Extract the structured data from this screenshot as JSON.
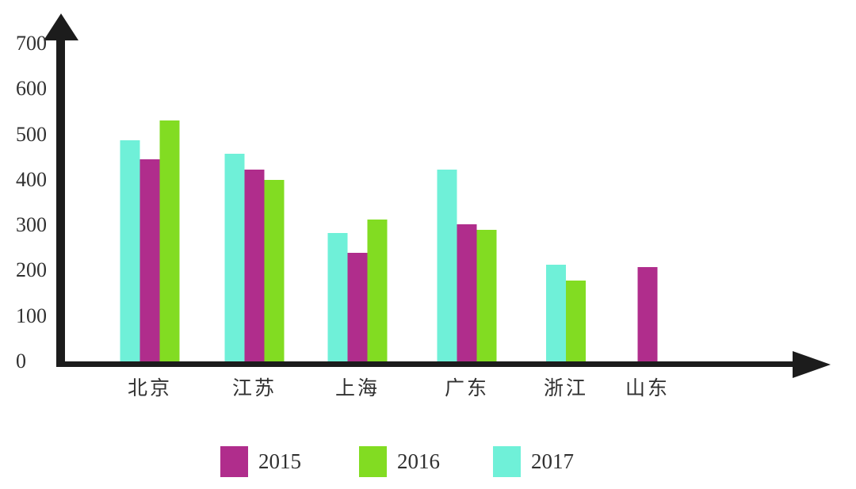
{
  "chart_data": {
    "type": "bar",
    "title": "",
    "categories": [
      "北京",
      "江苏",
      "上海",
      "广东",
      "浙江",
      "山东"
    ],
    "series": [
      {
        "name": "2015",
        "color": "#b02d8c",
        "values": [
          445,
          422,
          240,
          302,
          null,
          207
        ]
      },
      {
        "name": "2016",
        "color": "#82dc22",
        "values": [
          530,
          400,
          313,
          290,
          178,
          null
        ]
      },
      {
        "name": "2017",
        "color": "#6ff0d8",
        "values": [
          487,
          457,
          283,
          422,
          213,
          null
        ]
      }
    ],
    "bar_display_order": [
      "2017",
      "2015",
      "2016"
    ],
    "xlabel": "",
    "ylabel": "",
    "ylim": [
      0,
      700
    ],
    "yticks": [
      0,
      100,
      200,
      300,
      400,
      500,
      600,
      700
    ],
    "grid": false,
    "legend_position": "bottom",
    "legend": [
      "2015",
      "2016",
      "2017"
    ],
    "axis_color": "#1c1c1c",
    "text_color": "#303030",
    "background": "#ffffff"
  }
}
